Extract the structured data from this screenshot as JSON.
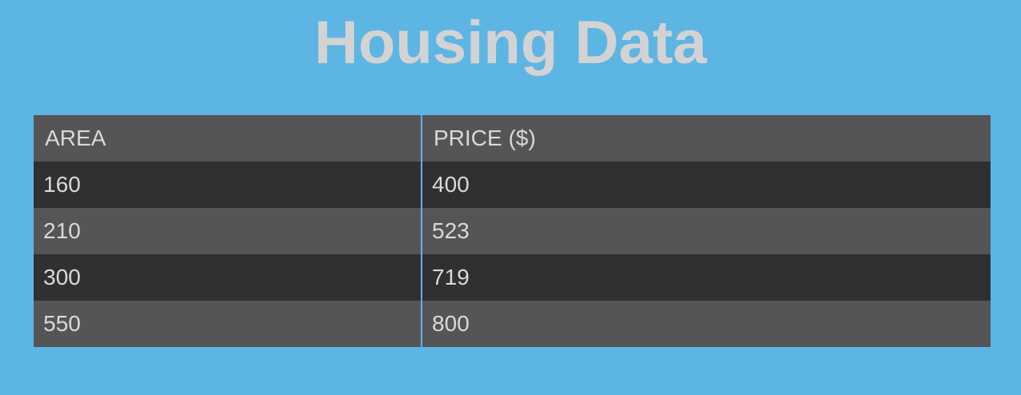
{
  "chart_data": {
    "type": "table",
    "title": "Housing Data",
    "columns": [
      "AREA",
      "PRICE ($)"
    ],
    "rows": [
      [
        "160",
        "400"
      ],
      [
        "210",
        "523"
      ],
      [
        "300",
        "719"
      ],
      [
        "550",
        "800"
      ]
    ]
  },
  "colors": {
    "background": "#5db5e3",
    "title": "#d3d3d3",
    "header_row": "#555555",
    "row_dark": "#303030",
    "row_light": "#555555",
    "text": "#d9d9d9"
  }
}
